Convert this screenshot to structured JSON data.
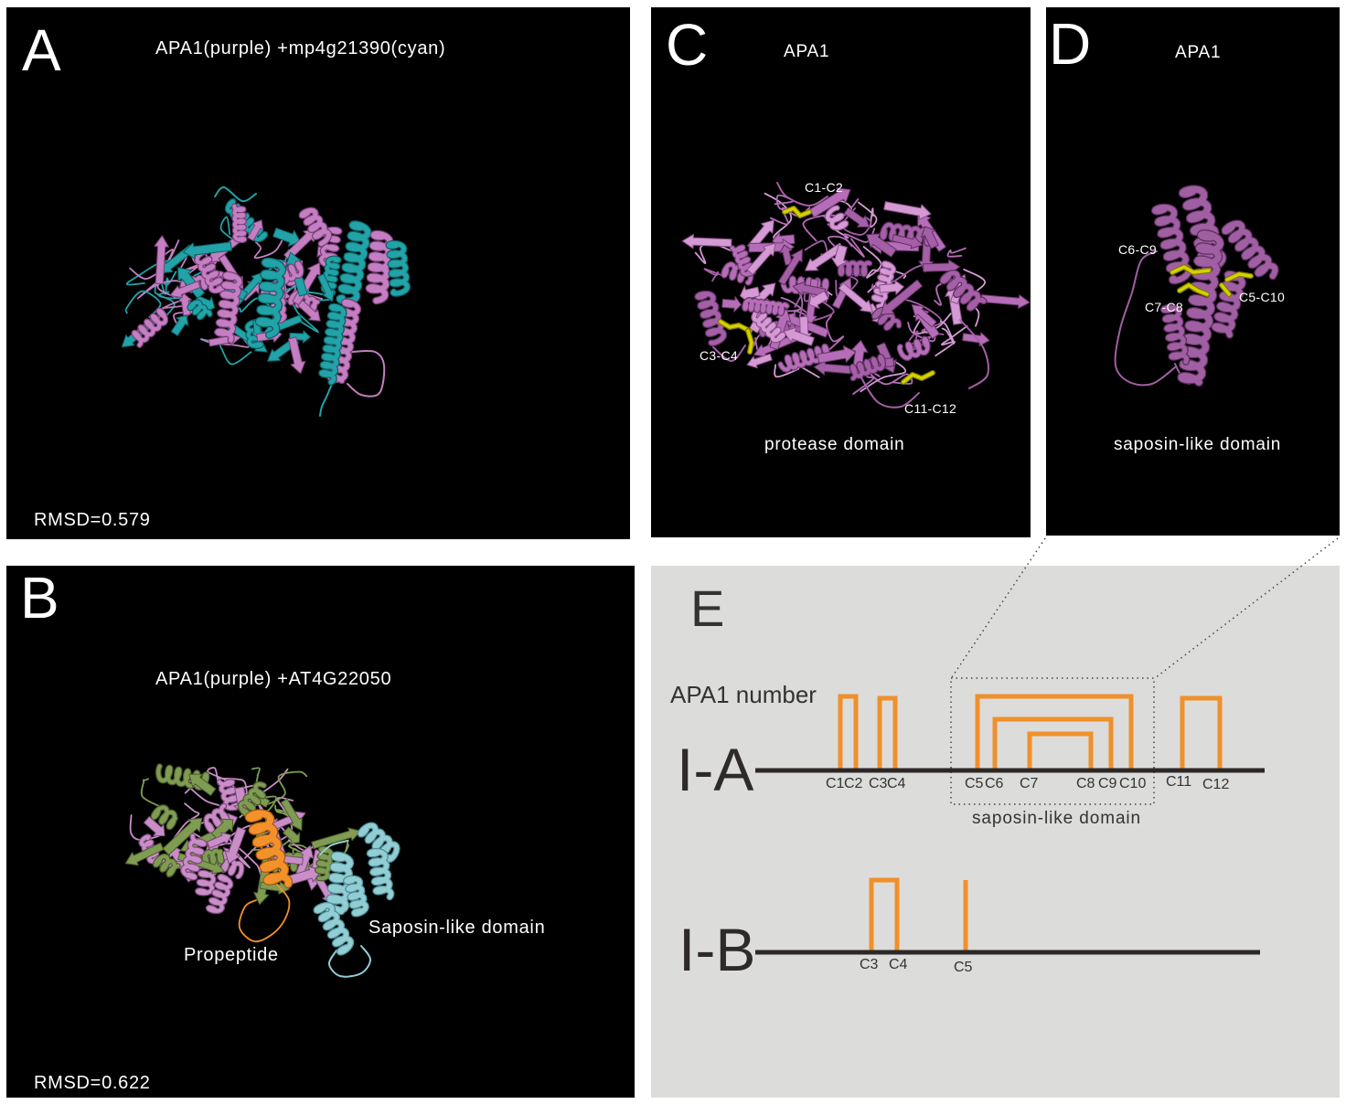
{
  "figure": {
    "panel_a": {
      "letter": "A",
      "title": "APA1(purple) +mp4g21390(cyan)",
      "rmsd": "RMSD=0.579"
    },
    "panel_b": {
      "letter": "B",
      "title": "APA1(purple) +AT4G22050",
      "propeptide_label": "Propeptide",
      "saposin_label": "Saposin-like domain",
      "rmsd": "RMSD=0.622"
    },
    "panel_c": {
      "letter": "C",
      "title": "APA1",
      "bonds": [
        "C1-C2",
        "C3-C4",
        "C11-C12"
      ],
      "domain": "protease domain"
    },
    "panel_d": {
      "letter": "D",
      "title": "APA1",
      "bonds": [
        "C6-C9",
        "C7-C8",
        "C5-C10"
      ],
      "domain": "saposin-like domain"
    },
    "panel_e": {
      "letter": "E",
      "legend": "APA1 number",
      "domain_box_label": "saposin-like domain",
      "rows": [
        {
          "name": "I-A",
          "cysteines": [
            "C1",
            "C2",
            "C3",
            "C4",
            "C5",
            "C6",
            "C7",
            "C8",
            "C9",
            "C10",
            "C11",
            "C12"
          ],
          "pairs": [
            [
              0,
              1
            ],
            [
              2,
              3
            ],
            [
              4,
              9
            ],
            [
              5,
              8
            ],
            [
              6,
              7
            ],
            [
              10,
              11
            ]
          ],
          "unpaired": []
        },
        {
          "name": "I-B",
          "cysteines": [
            "C3",
            "C4",
            "C5"
          ],
          "pairs": [
            [
              0,
              1
            ]
          ],
          "unpaired": [
            2
          ]
        }
      ]
    }
  },
  "colors": {
    "apa1_purple": "#c47ec2",
    "apa1_purple_dark": "#7a3f78",
    "cyan_overlay": "#21a3a8",
    "cyan_overlay_dark": "#0e5f62",
    "olive_overlay": "#7f9c52",
    "olive_overlay_dark": "#4a5e2c",
    "propeptide_orange": "#f3922a",
    "propeptide_orange_dark": "#a85a10",
    "saposin_cyan": "#93cdd4",
    "saposin_cyan_dark": "#4e8e96",
    "protease_purple": "#a45fa6",
    "protease_purple_dark": "#5e2f60",
    "protease_pink": "#d49ad4",
    "protease_pink_dark": "#8d4f8d",
    "disulfide_yellow": "#d6d000",
    "disulfide_yellow_dark": "#7d7a00",
    "bracket_orange": "#f0902a",
    "backbone": "#2d2828",
    "panel_e_bg": "#dcdcdb"
  }
}
